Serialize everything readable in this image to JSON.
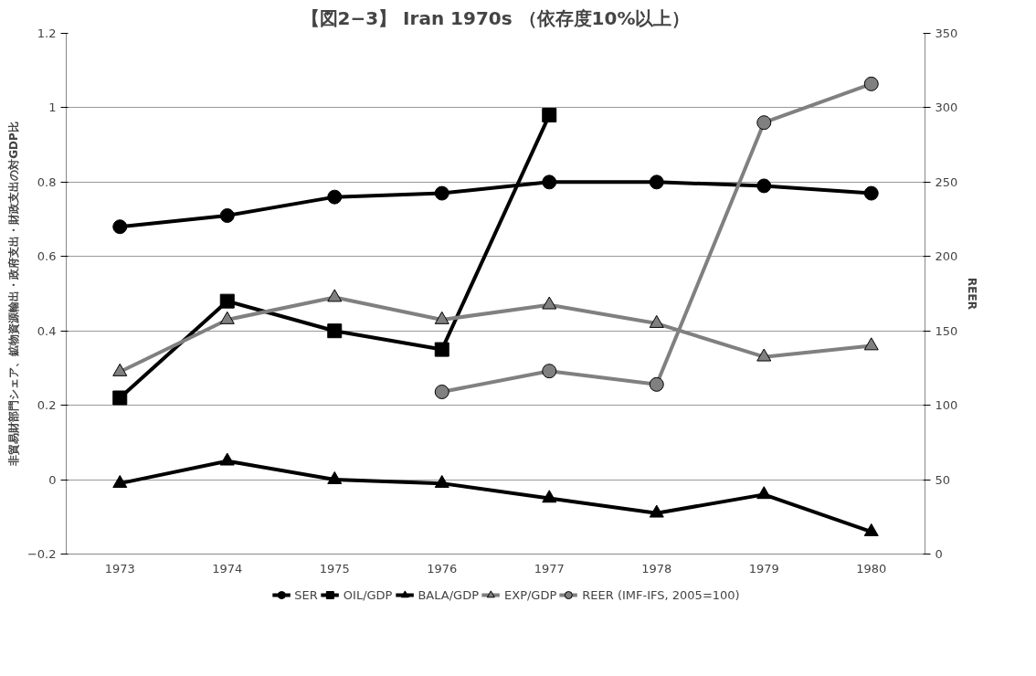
{
  "chart_data": {
    "type": "line",
    "title": "【図2−3】 Iran 1970s （依存度10%以上）",
    "ylabel": "非貿易財部門シェア、鉱物資源輸出・政府支出・財政支出の対GDP比",
    "y2label": "REER",
    "categories": [
      "1973",
      "1974",
      "1975",
      "1976",
      "1977",
      "1978",
      "1979",
      "1980"
    ],
    "ylim": [
      -0.2,
      1.2
    ],
    "yticks": [
      -0.2,
      0,
      0.2,
      0.4,
      0.6,
      0.8,
      1,
      1.2
    ],
    "y2lim": [
      0,
      350
    ],
    "y2ticks": [
      0,
      50,
      100,
      150,
      200,
      250,
      300,
      350
    ],
    "grid": "y",
    "legend": "bottom",
    "series": [
      {
        "name": "SER",
        "color": "#000000",
        "marker": "circle",
        "values": [
          0.68,
          0.71,
          0.76,
          0.77,
          0.8,
          0.8,
          0.79,
          0.77
        ]
      },
      {
        "name": "OIL/GDP",
        "color": "#000000",
        "marker": "square",
        "values": [
          0.22,
          0.48,
          0.4,
          0.35,
          0.98,
          null,
          null,
          null
        ]
      },
      {
        "name": "BALA/GDP",
        "color": "#000000",
        "marker": "triangle",
        "values": [
          -0.01,
          0.05,
          0,
          -0.01,
          -0.05,
          -0.09,
          -0.04,
          -0.14
        ]
      },
      {
        "name": "EXP/GDP",
        "color": "#808080",
        "marker": "triangle",
        "values": [
          0.29,
          0.43,
          0.49,
          0.43,
          0.47,
          0.42,
          0.33,
          0.36
        ]
      },
      {
        "name": "REER (IMF-IFS, 2005=100)",
        "color": "#808080",
        "marker": "circle",
        "axis": "y2",
        "values": [
          null,
          null,
          null,
          109,
          123,
          114,
          290,
          316
        ]
      }
    ]
  }
}
